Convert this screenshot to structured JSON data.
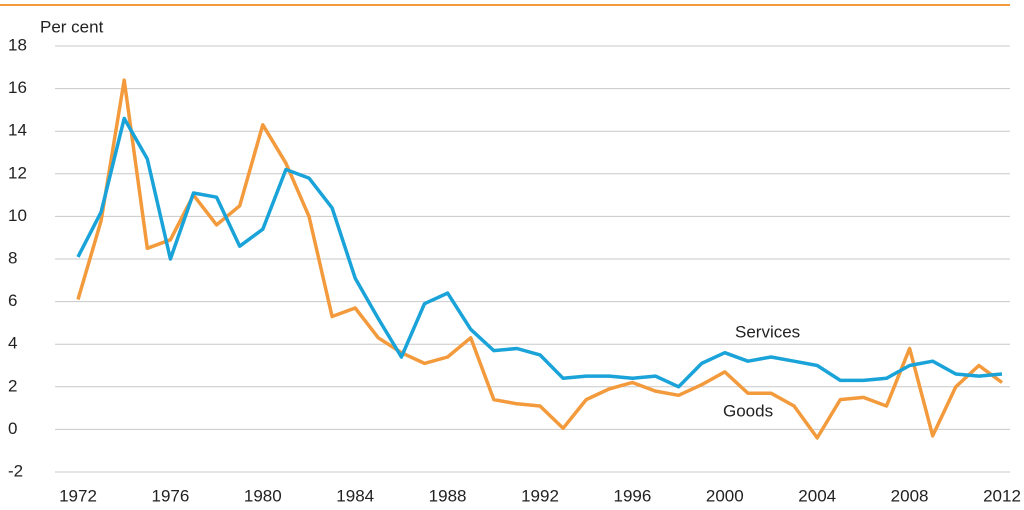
{
  "chart_data": {
    "type": "line",
    "y_label": "Per cent",
    "x": [
      1972,
      1973,
      1974,
      1975,
      1976,
      1977,
      1978,
      1979,
      1980,
      1981,
      1982,
      1983,
      1984,
      1985,
      1986,
      1987,
      1988,
      1989,
      1990,
      1991,
      1992,
      1993,
      1994,
      1995,
      1996,
      1997,
      1998,
      1999,
      2000,
      2001,
      2002,
      2003,
      2004,
      2005,
      2006,
      2007,
      2008,
      2009,
      2010,
      2011,
      2012
    ],
    "series": [
      {
        "name": "Goods",
        "color": "#f39a3c",
        "values": [
          6.1,
          9.8,
          16.4,
          8.5,
          8.9,
          11.0,
          9.6,
          10.5,
          14.3,
          12.5,
          10.0,
          5.3,
          5.7,
          4.3,
          3.6,
          3.1,
          3.4,
          4.3,
          1.4,
          1.2,
          1.1,
          0.05,
          1.4,
          1.9,
          2.2,
          1.8,
          1.6,
          2.1,
          2.7,
          1.7,
          1.7,
          1.1,
          -0.4,
          1.4,
          1.5,
          1.1,
          3.8,
          -0.3,
          2.0,
          3.0,
          2.2
        ]
      },
      {
        "name": "Services",
        "color": "#1aa3d9",
        "values": [
          8.1,
          10.2,
          14.6,
          12.7,
          8.0,
          11.1,
          10.9,
          8.6,
          9.4,
          12.2,
          11.8,
          10.4,
          7.1,
          5.2,
          3.4,
          5.9,
          6.4,
          4.7,
          3.7,
          3.8,
          3.5,
          2.4,
          2.5,
          2.5,
          2.4,
          2.5,
          2.0,
          3.1,
          3.6,
          3.2,
          3.4,
          3.2,
          3.0,
          2.3,
          2.3,
          2.4,
          3.0,
          3.2,
          2.6,
          2.5,
          2.6
        ]
      }
    ],
    "xlim": [
      1972,
      2012
    ],
    "xticks": [
      1972,
      1976,
      1980,
      1984,
      1988,
      1992,
      1996,
      2000,
      2004,
      2008,
      2012
    ],
    "ylim": [
      -2,
      18
    ],
    "yticks": [
      -2,
      0,
      2,
      4,
      6,
      8,
      10,
      12,
      14,
      16,
      18
    ],
    "grid": true
  }
}
